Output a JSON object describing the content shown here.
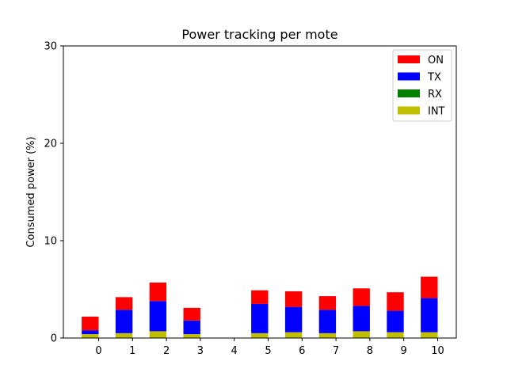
{
  "chart_data": {
    "type": "bar",
    "stacked": true,
    "title": "Power tracking per mote",
    "xlabel": "",
    "ylabel": "Consumed power (%)",
    "ylim": [
      0,
      30
    ],
    "yticks": [
      "0",
      "10",
      "20",
      "30"
    ],
    "categories": [
      "0",
      "1",
      "2",
      "3",
      "4",
      "5",
      "6",
      "7",
      "8",
      "9",
      "10"
    ],
    "legend_position": "top-right",
    "grid": false,
    "series": [
      {
        "name": "INT",
        "color": "#bfbf00",
        "values": [
          0.4,
          0.5,
          0.7,
          0.4,
          0,
          0.5,
          0.6,
          0.5,
          0.7,
          0.6,
          0.6
        ]
      },
      {
        "name": "RX",
        "color": "#008000",
        "values": [
          0,
          0,
          0,
          0,
          0,
          0,
          0,
          0,
          0,
          0,
          0
        ]
      },
      {
        "name": "TX",
        "color": "#0000ff",
        "values": [
          0.4,
          2.4,
          3.1,
          1.4,
          0,
          3.0,
          2.6,
          2.4,
          2.6,
          2.2,
          3.5
        ]
      },
      {
        "name": "ON",
        "color": "#ff0000",
        "values": [
          1.4,
          1.3,
          1.9,
          1.3,
          0,
          1.4,
          1.6,
          1.4,
          1.8,
          1.9,
          2.2
        ]
      }
    ],
    "legend_order": [
      "ON",
      "TX",
      "RX",
      "INT"
    ]
  }
}
